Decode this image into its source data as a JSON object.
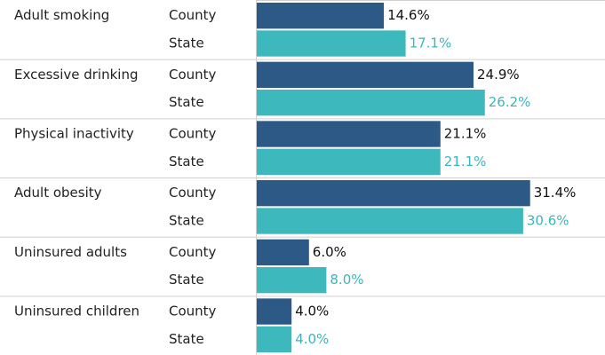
{
  "chart_data": {
    "type": "bar",
    "orientation": "horizontal",
    "categories": [
      "Adult smoking",
      "Excessive drinking",
      "Physical inactivity",
      "Adult obesity",
      "Uninsured adults",
      "Uninsured children"
    ],
    "series": [
      {
        "name": "County",
        "color": "#2d5986",
        "label_color": "#111111",
        "values": [
          14.6,
          24.9,
          21.1,
          31.4,
          6.0,
          4.0
        ],
        "value_labels": [
          "14.6%",
          "24.9%",
          "21.1%",
          "31.4%",
          "6.0%",
          "4.0%"
        ]
      },
      {
        "name": "State",
        "color": "#3db8bc",
        "label_color": "#3db5bb",
        "values": [
          17.1,
          26.2,
          21.1,
          30.6,
          8.0,
          4.0
        ],
        "value_labels": [
          "17.1%",
          "26.2%",
          "21.1%",
          "30.6%",
          "8.0%",
          "4.0%"
        ]
      }
    ],
    "xlim": [
      0,
      40
    ]
  }
}
